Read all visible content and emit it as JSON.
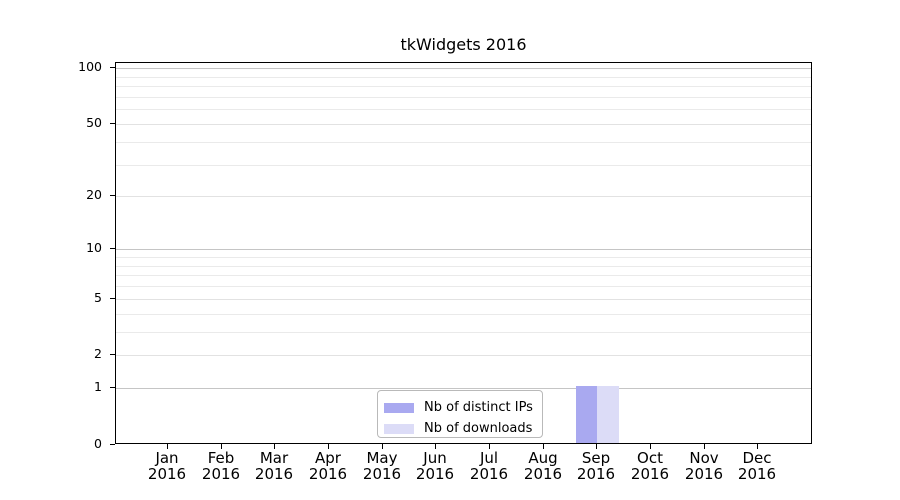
{
  "chart_data": {
    "type": "bar",
    "title": "tkWidgets 2016",
    "categories": [
      "Jan",
      "Feb",
      "Mar",
      "Apr",
      "May",
      "Jun",
      "Jul",
      "Aug",
      "Sep",
      "Oct",
      "Nov",
      "Dec"
    ],
    "category_year": "2016",
    "series": [
      {
        "name": "Nb of distinct IPs",
        "color": "#a9a9f0",
        "values": [
          0,
          0,
          0,
          0,
          0,
          0,
          0,
          0,
          1,
          0,
          0,
          0
        ]
      },
      {
        "name": "Nb of downloads",
        "color": "#dcdcf7",
        "values": [
          0,
          0,
          0,
          0,
          0,
          0,
          0,
          0,
          1,
          0,
          0,
          0
        ]
      }
    ],
    "xlabel": "",
    "ylabel": "",
    "y_scale": "log10(1+y)",
    "y_ticks": [
      0,
      1,
      2,
      5,
      10,
      20,
      50,
      100
    ],
    "y_minor_ticks": [
      3,
      4,
      6,
      7,
      8,
      9,
      30,
      40,
      60,
      70,
      80,
      90
    ],
    "ylim": [
      0,
      106.5
    ],
    "grid": "horizontal",
    "legend_position": "bottom-center"
  },
  "colors": {
    "bar_distinct_ips": "#a9a9f0",
    "bar_downloads": "#dcdcf7",
    "grid_decade": "#c5c5c5",
    "grid_major": "#e2e2e2",
    "grid_minor": "#eaeaea",
    "axis": "#000000",
    "legend_border": "#b9b9b9",
    "background": "#ffffff",
    "text": "#000000"
  }
}
